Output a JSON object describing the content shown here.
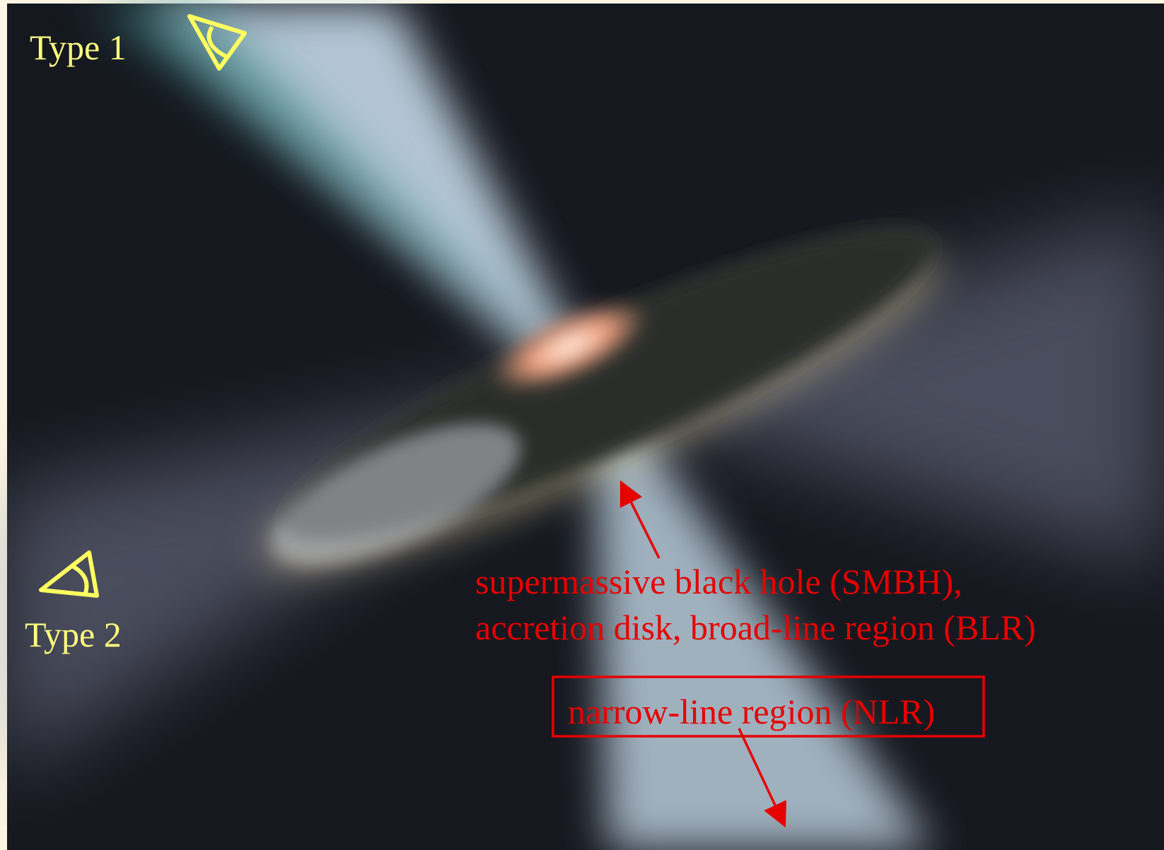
{
  "labels": {
    "type1": "Type 1",
    "type2": "Type 2"
  },
  "annotations": {
    "smbh_line1": "supermassive black hole (SMBH),",
    "smbh_line2": "accretion disk, broad-line region (BLR)",
    "nlr": "narrow-line region (NLR)"
  }
}
